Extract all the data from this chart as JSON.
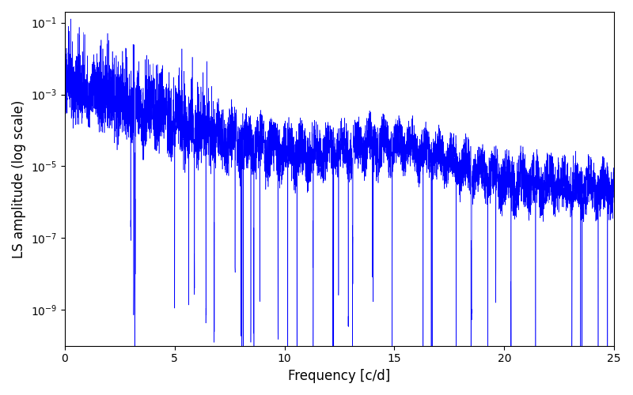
{
  "title": "",
  "xlabel": "Frequency [c/d]",
  "ylabel": "LS amplitude (log scale)",
  "xlim": [
    0,
    25
  ],
  "ylim": [
    1e-10,
    0.2
  ],
  "line_color": "#0000ff",
  "background_color": "#ffffff",
  "figsize": [
    8.0,
    5.0
  ],
  "dpi": 100,
  "seed": 7,
  "freq_max": 25.0,
  "n_points": 6000,
  "yticks": [
    1e-09,
    1e-07,
    1e-05,
    0.001,
    0.1
  ],
  "xticks": [
    0,
    5,
    10,
    15,
    20,
    25
  ]
}
